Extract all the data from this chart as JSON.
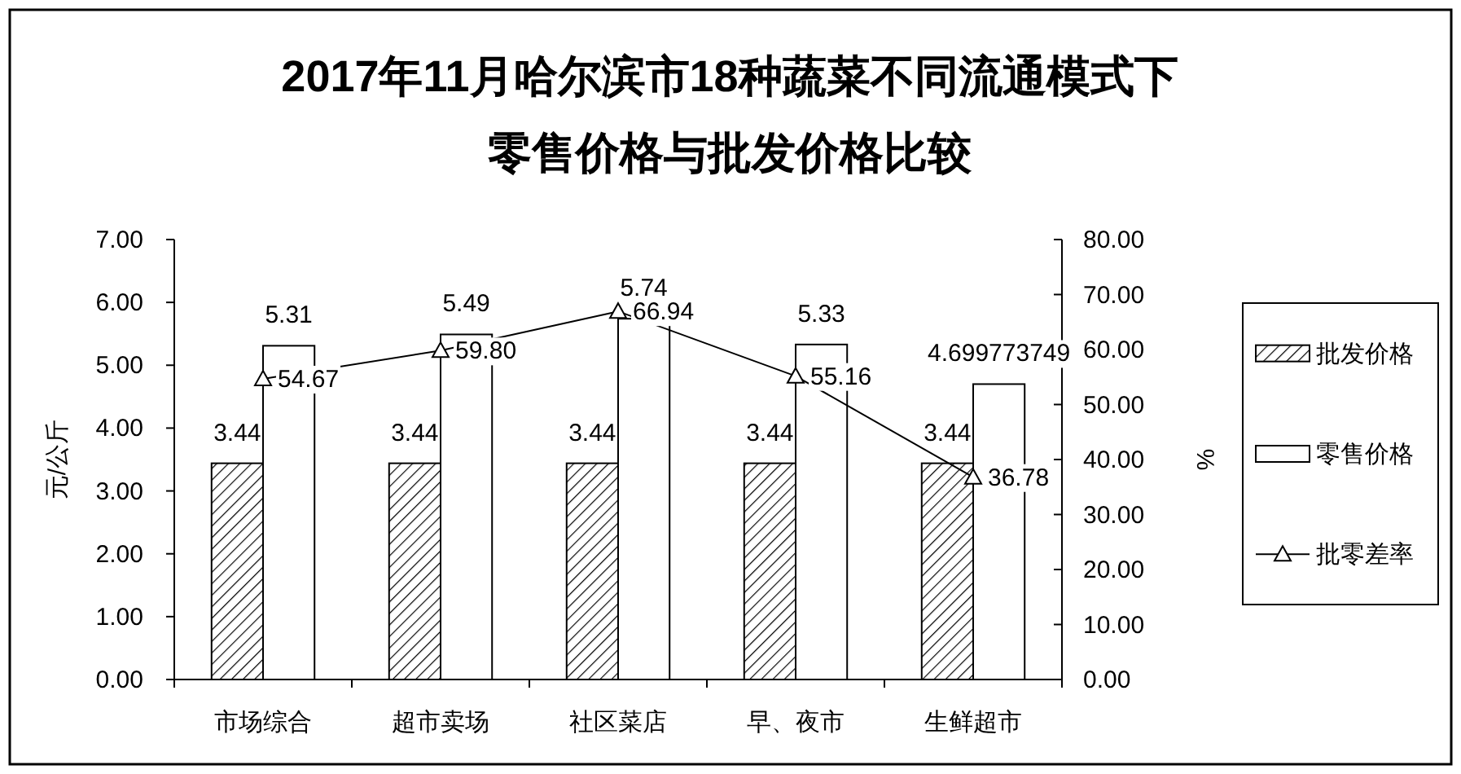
{
  "chart_data": {
    "type": "bar",
    "title": "2017年11月哈尔滨市18种蔬菜不同流通模式下零售价格与批发价格比较",
    "ylabel": "元/公斤",
    "y2label": "%",
    "categories": [
      "市场综合",
      "超市卖场",
      "社区菜店",
      "早、夜市",
      "生鲜超市"
    ],
    "series": [
      {
        "name": "批发价格",
        "color": "#000000",
        "values": [
          3.44,
          3.44,
          3.44,
          3.44,
          3.44
        ],
        "value_labels": [
          "3.44",
          "3.44",
          "3.44",
          "3.44",
          "3.44"
        ]
      },
      {
        "name": "零售价格",
        "color": "#ffffff",
        "values": [
          5.31,
          5.49,
          5.74,
          5.33,
          4.699773749
        ],
        "value_labels": [
          "5.31",
          "5.49",
          "5.74",
          "5.33",
          "4.699773749"
        ]
      },
      {
        "name": "批零差率",
        "type": "line",
        "axis": "y2",
        "color": "#000000",
        "values": [
          54.67,
          59.8,
          66.94,
          55.16,
          36.78
        ],
        "value_labels": [
          "54.67",
          "59.80",
          "66.94",
          "55.16",
          "36.78"
        ]
      }
    ],
    "ylim": [
      0,
      7
    ],
    "yticks": [
      {
        "value": 0,
        "label": "0.00"
      },
      {
        "value": 1,
        "label": "1.00"
      },
      {
        "value": 2,
        "label": "2.00"
      },
      {
        "value": 3,
        "label": "3.00"
      },
      {
        "value": 4,
        "label": "4.00"
      },
      {
        "value": 5,
        "label": "5.00"
      },
      {
        "value": 6,
        "label": "6.00"
      },
      {
        "value": 7,
        "label": "7.00"
      }
    ],
    "y2lim": [
      0,
      80
    ],
    "y2ticks": [
      {
        "value": 0,
        "label": "0.00"
      },
      {
        "value": 10,
        "label": "10.00"
      },
      {
        "value": 20,
        "label": "20.00"
      },
      {
        "value": 30,
        "label": "30.00"
      },
      {
        "value": 40,
        "label": "40.00"
      },
      {
        "value": 50,
        "label": "50.00"
      },
      {
        "value": 60,
        "label": "60.00"
      },
      {
        "value": 70,
        "label": "70.00"
      },
      {
        "value": 80,
        "label": "80.00"
      }
    ],
    "marker": "triangle",
    "grid": false,
    "legend": "right"
  }
}
